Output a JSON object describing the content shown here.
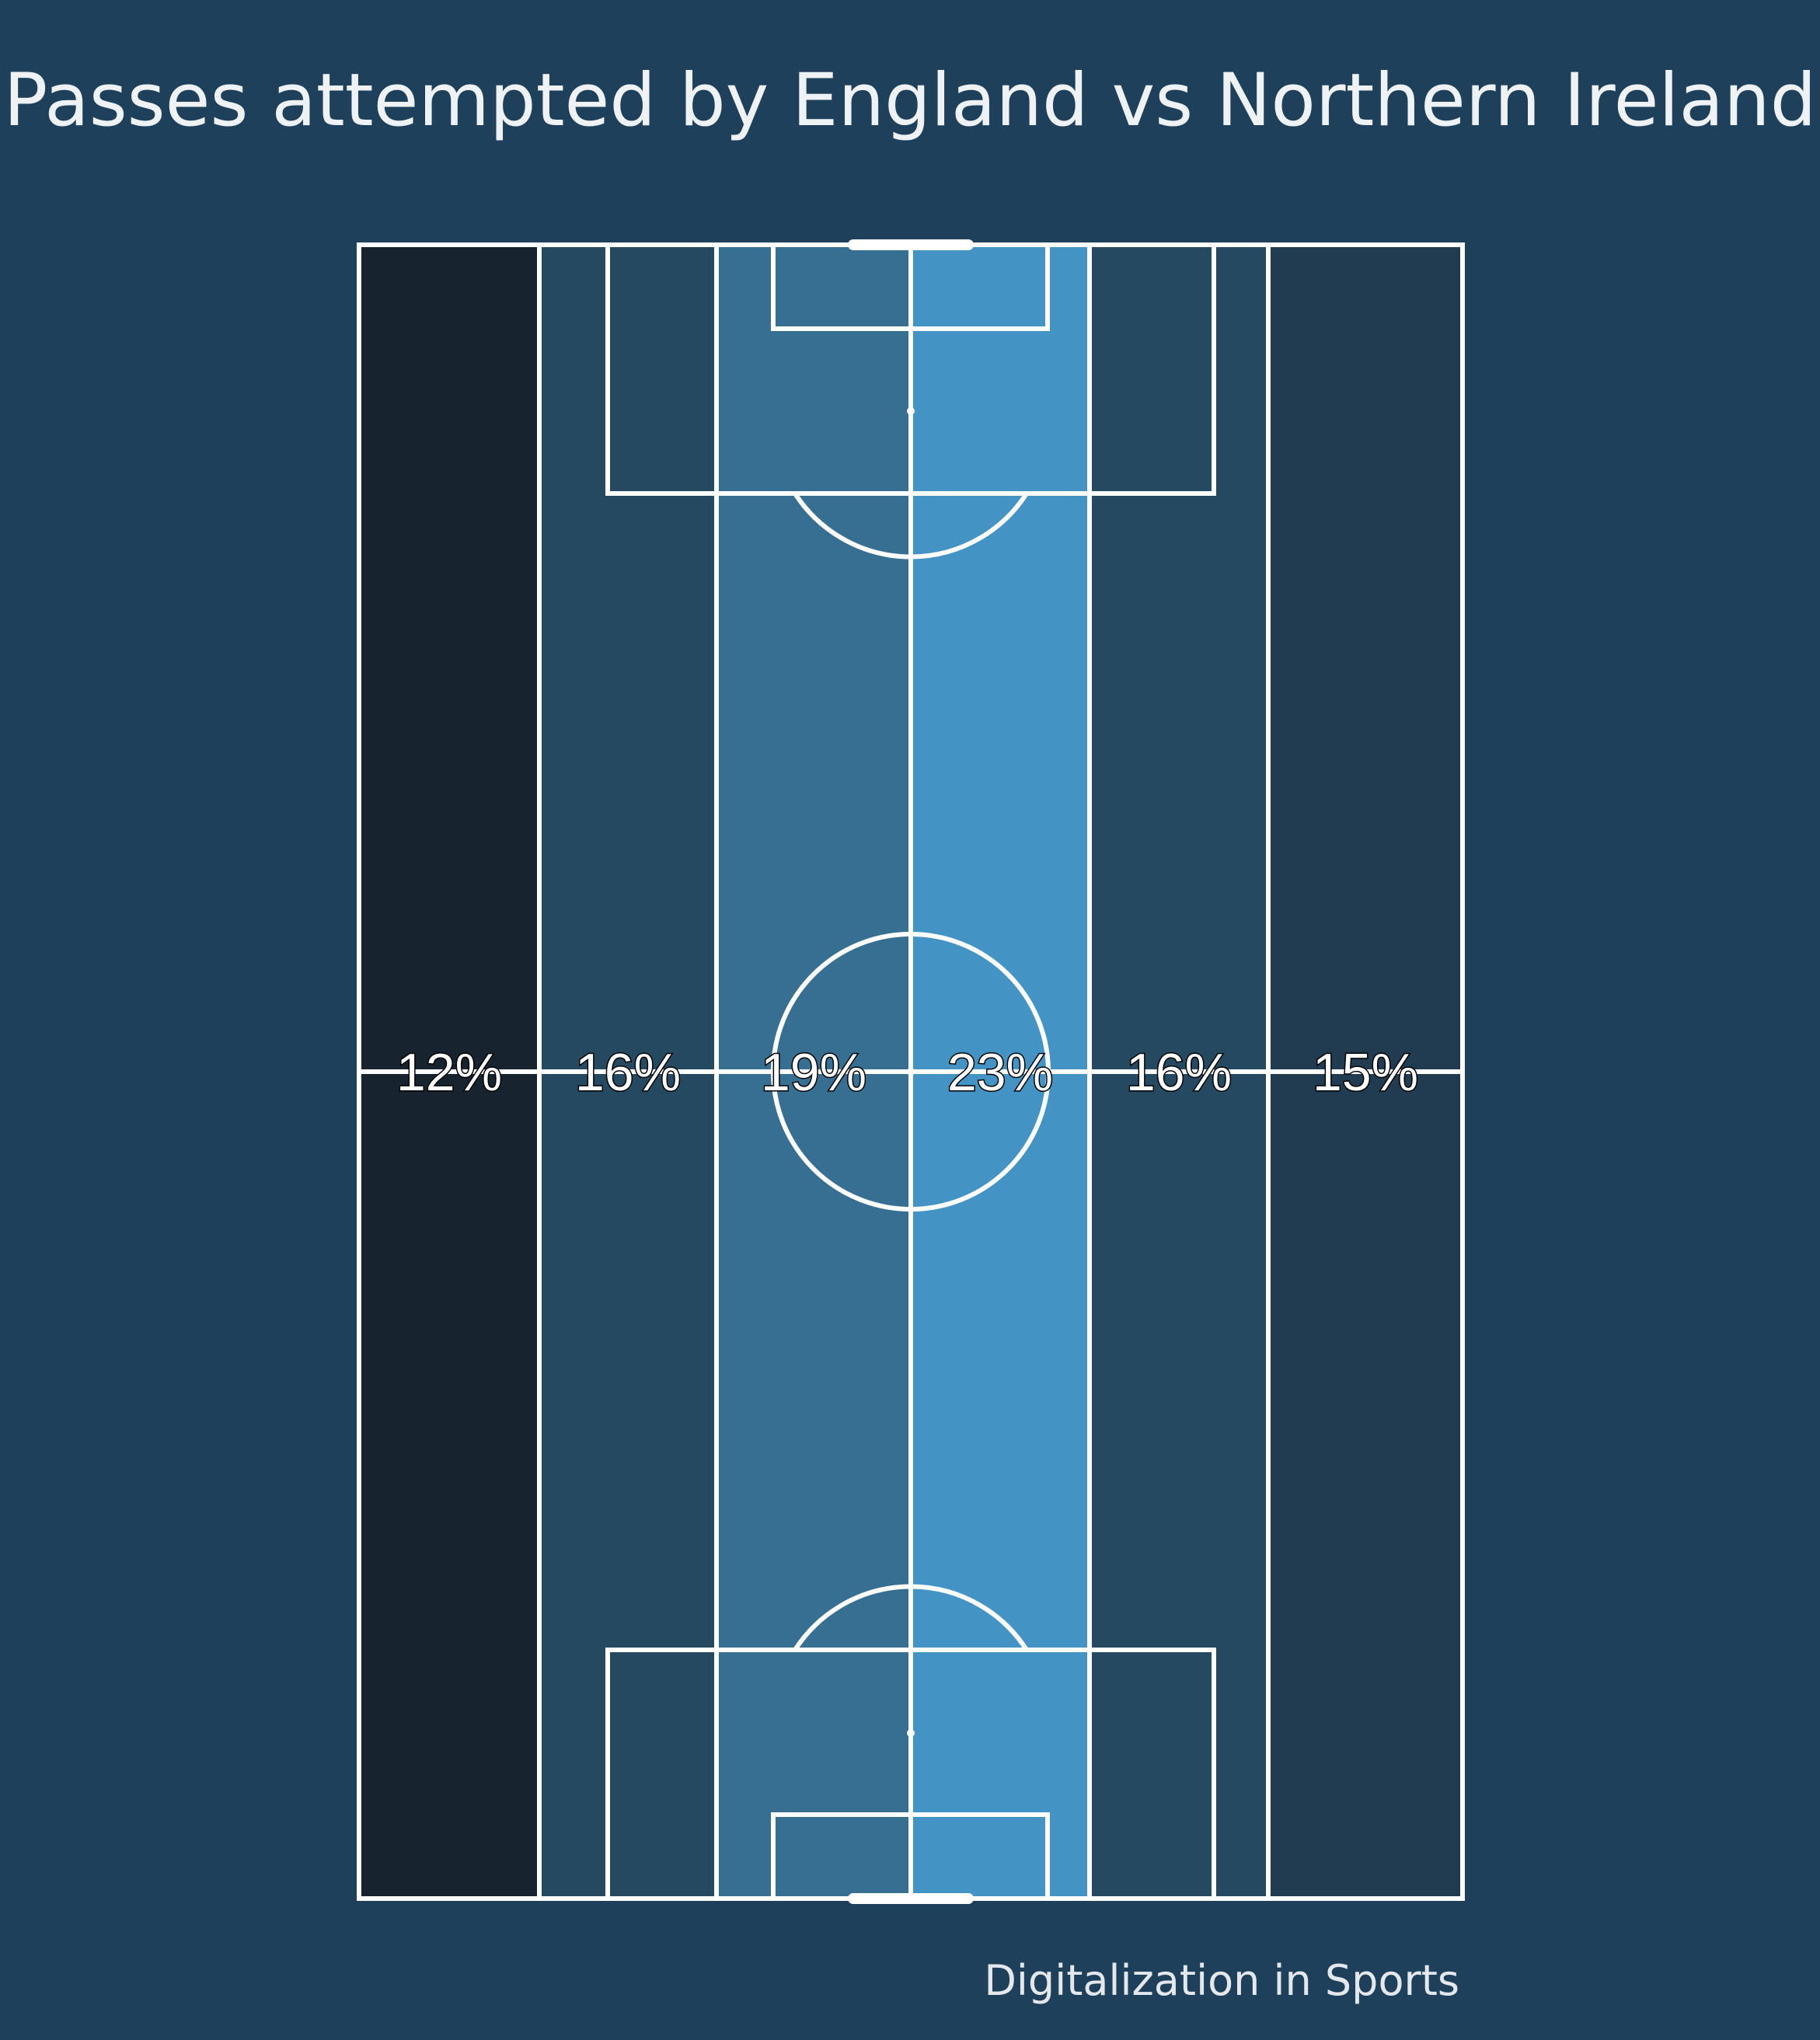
{
  "chart_data": {
    "type": "heatmap",
    "title": "Passes attempted by England vs Northern Ireland",
    "categories": [
      "lane-1",
      "lane-2",
      "lane-3",
      "lane-4",
      "lane-5",
      "lane-6"
    ],
    "values": [
      12,
      16,
      19,
      23,
      16,
      15
    ],
    "labels": [
      "12%",
      "16%",
      "19%",
      "23%",
      "16%",
      "15%"
    ],
    "value_unit": "%",
    "colors": {
      "background": "#1f405a",
      "pitch_lines": "#ffffff",
      "lanes": [
        "#17242f",
        "#244961",
        "#376f93",
        "#4393c5",
        "#244961",
        "#213c50"
      ]
    }
  },
  "credit": "Digitalization in Sports"
}
